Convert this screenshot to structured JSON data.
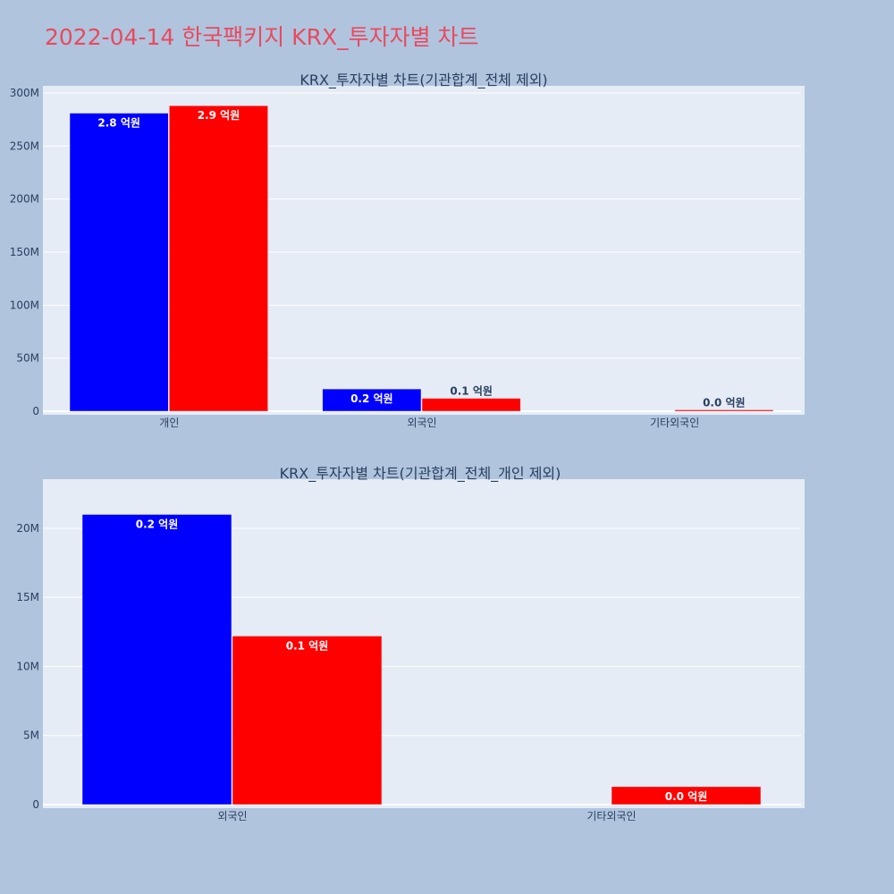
{
  "page": {
    "title": "2022-04-14 한국팩키지 KRX_투자자별 차트"
  },
  "colors": {
    "background": "#b0c4de",
    "plot_background": "#e5ecf6",
    "title": "#e84a5f",
    "text": "#2a3f5f",
    "series_a": "#0000ff",
    "series_b": "#ff0000"
  },
  "chart_data": [
    {
      "type": "bar",
      "title": "KRX_투자자별 차트(기관합계_전체 제외)",
      "categories": [
        "개인",
        "외국인",
        "기타외국인"
      ],
      "series": [
        {
          "color": "#0000ff",
          "values": [
            281000000,
            21000000,
            0
          ],
          "labels": [
            "2.8 억원",
            "0.2 억원",
            ""
          ]
        },
        {
          "color": "#ff0000",
          "values": [
            288000000,
            12200000,
            1300000
          ],
          "labels": [
            "2.9 억원",
            "0.1 억원",
            "0.0 억원"
          ]
        }
      ],
      "ylim": [
        0,
        300000000
      ],
      "yticks": [
        0,
        50000000,
        100000000,
        150000000,
        200000000,
        250000000,
        300000000
      ],
      "ytick_labels": [
        "0",
        "50M",
        "100M",
        "150M",
        "200M",
        "250M",
        "300M"
      ],
      "xlabel": "",
      "ylabel": "",
      "grid": true
    },
    {
      "type": "bar",
      "title": "KRX_투자자별 차트(기관합계_전체_개인 제외)",
      "categories": [
        "외국인",
        "기타외국인"
      ],
      "series": [
        {
          "color": "#0000ff",
          "values": [
            21000000,
            0
          ],
          "labels": [
            "0.2 억원",
            ""
          ]
        },
        {
          "color": "#ff0000",
          "values": [
            12200000,
            1300000
          ],
          "labels": [
            "0.1 억원",
            "0.0 억원"
          ]
        }
      ],
      "ylim": [
        0,
        22000000
      ],
      "yticks": [
        0,
        5000000,
        10000000,
        15000000,
        20000000
      ],
      "ytick_labels": [
        "0",
        "5M",
        "10M",
        "15M",
        "20M"
      ],
      "xlabel": "",
      "ylabel": "",
      "grid": true
    }
  ]
}
